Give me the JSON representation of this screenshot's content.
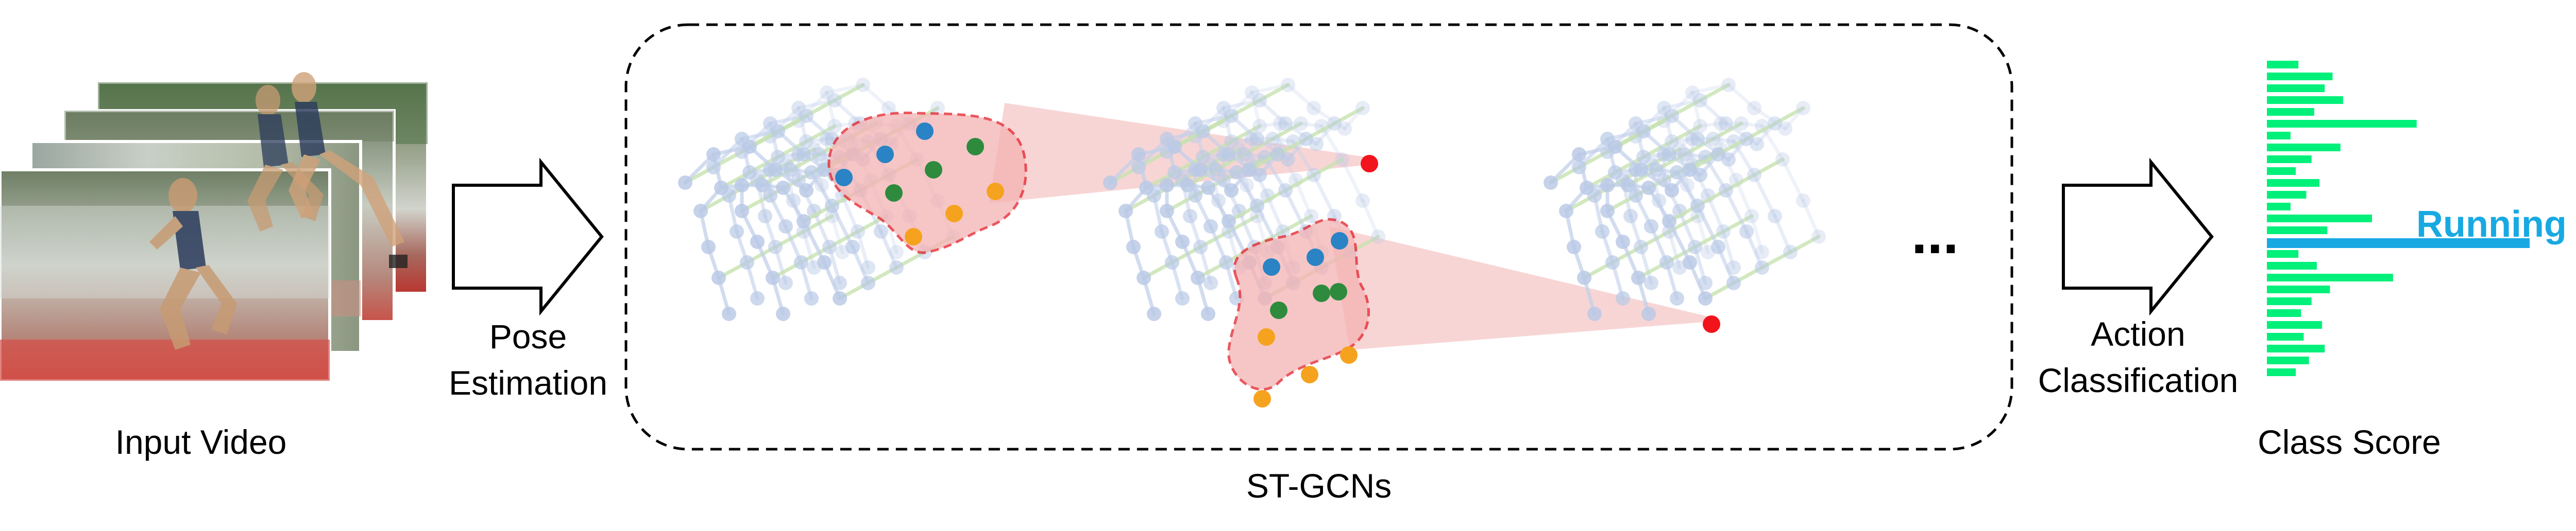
{
  "labels": {
    "input_video": "Input Video",
    "pose_estimation_line1": "Pose",
    "pose_estimation_line2": "Estimation",
    "st_gcns": "ST-GCNs",
    "action_classification_line1": "Action",
    "action_classification_line2": "Classification",
    "class_score": "Class Score",
    "predicted_class": "Running",
    "ellipsis": "..."
  },
  "colors": {
    "score_bar": "#00f07a",
    "highlight_bar": "#18a9e2",
    "graph_node": "#b9c9e6",
    "graph_edge_blue": "#c2d0ea",
    "graph_edge_green": "#c8e3b0",
    "region_fill": "#f6c7c7",
    "region_border": "#e4202a",
    "node_blue": "#2a83c4",
    "node_green": "#2e8b3e",
    "node_orange": "#f5a31f",
    "node_red": "#f2141c"
  },
  "class_scores": [
    0.12,
    0.25,
    0.22,
    0.29,
    0.18,
    0.57,
    0.09,
    0.28,
    0.17,
    0.11,
    0.2,
    0.15,
    0.09,
    0.4,
    0.23,
    1.0,
    0.12,
    0.19,
    0.48,
    0.24,
    0.17,
    0.13,
    0.21,
    0.14,
    0.22,
    0.16,
    0.11
  ],
  "highlight_index": 15
}
